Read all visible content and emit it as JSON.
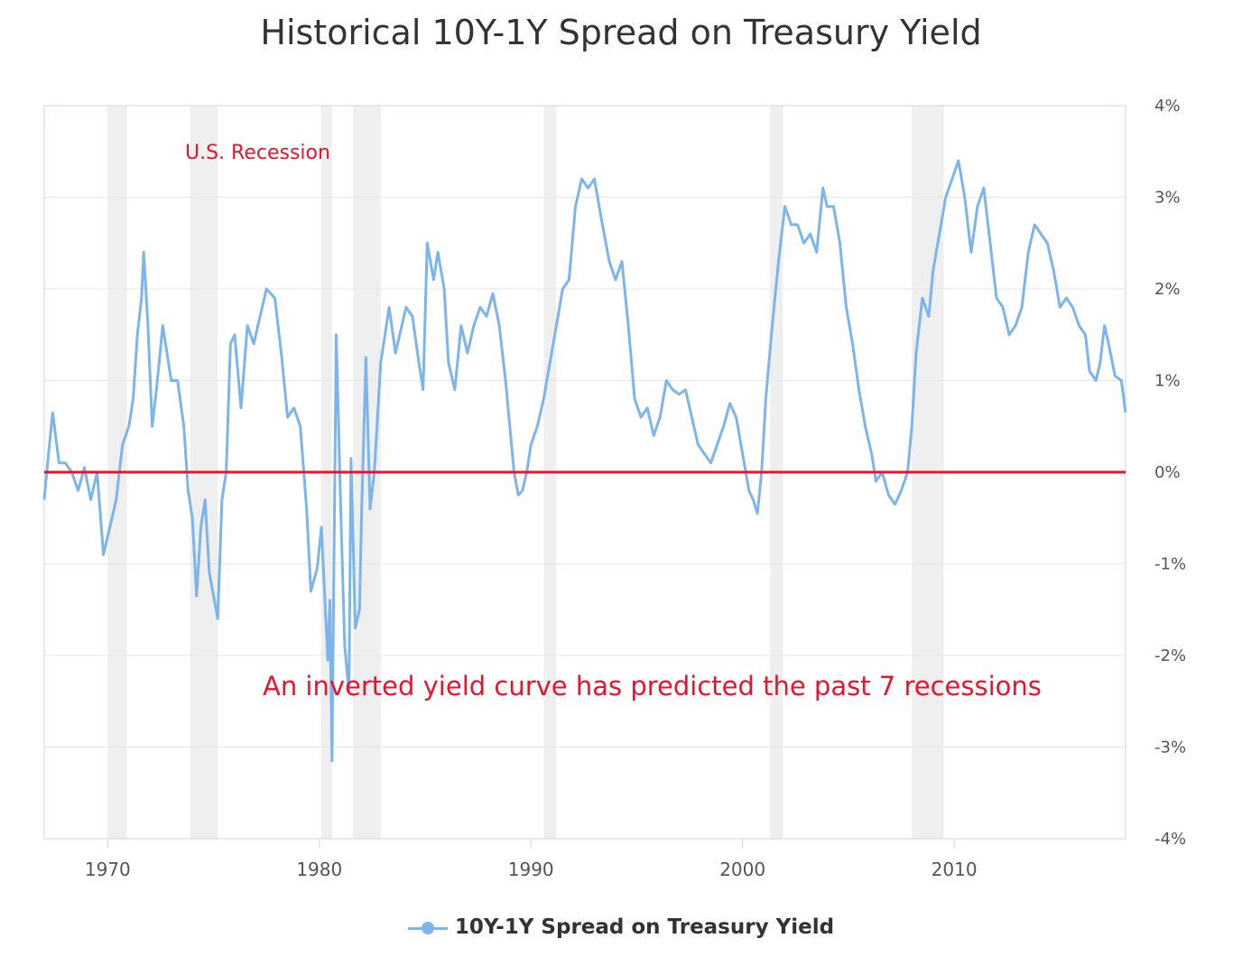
{
  "chart_data": {
    "type": "line",
    "title": "Historical 10Y-1Y Spread on Treasury Yield",
    "x_ticks": [
      "1970",
      "1980",
      "1990",
      "2000",
      "2010"
    ],
    "y_ticks": [
      "4%",
      "3%",
      "2%",
      "1%",
      "0%",
      "-1%",
      "-2%",
      "-3%",
      "-4%"
    ],
    "xlim": [
      1967.0,
      2018.1
    ],
    "ylim": [
      -4,
      4
    ],
    "grid": true,
    "legend_position": "bottom-center",
    "series": [
      {
        "name": "10Y-1Y Spread on Treasury Yield",
        "color": "#7cb5ec",
        "points": [
          [
            1967.0,
            -0.3
          ],
          [
            1967.2,
            0.2
          ],
          [
            1967.4,
            0.65
          ],
          [
            1967.7,
            0.1
          ],
          [
            1968.0,
            0.1
          ],
          [
            1968.3,
            0.0
          ],
          [
            1968.6,
            -0.2
          ],
          [
            1968.9,
            0.05
          ],
          [
            1969.2,
            -0.3
          ],
          [
            1969.5,
            0.0
          ],
          [
            1969.8,
            -0.9
          ],
          [
            1970.1,
            -0.6
          ],
          [
            1970.4,
            -0.3
          ],
          [
            1970.7,
            0.3
          ],
          [
            1971.0,
            0.5
          ],
          [
            1971.2,
            0.8
          ],
          [
            1971.4,
            1.5
          ],
          [
            1971.6,
            1.9
          ],
          [
            1971.7,
            2.4
          ],
          [
            1971.9,
            1.6
          ],
          [
            1972.1,
            0.5
          ],
          [
            1972.3,
            0.9
          ],
          [
            1972.6,
            1.6
          ],
          [
            1972.8,
            1.3
          ],
          [
            1973.0,
            1.0
          ],
          [
            1973.3,
            1.0
          ],
          [
            1973.6,
            0.5
          ],
          [
            1973.8,
            -0.2
          ],
          [
            1974.0,
            -0.5
          ],
          [
            1974.2,
            -1.35
          ],
          [
            1974.4,
            -0.6
          ],
          [
            1974.6,
            -0.3
          ],
          [
            1974.8,
            -1.1
          ],
          [
            1975.0,
            -1.35
          ],
          [
            1975.2,
            -1.6
          ],
          [
            1975.4,
            -0.3
          ],
          [
            1975.6,
            0.0
          ],
          [
            1975.8,
            1.4
          ],
          [
            1976.0,
            1.5
          ],
          [
            1976.3,
            0.7
          ],
          [
            1976.6,
            1.6
          ],
          [
            1976.9,
            1.4
          ],
          [
            1977.2,
            1.7
          ],
          [
            1977.5,
            2.0
          ],
          [
            1977.9,
            1.9
          ],
          [
            1978.2,
            1.3
          ],
          [
            1978.5,
            0.6
          ],
          [
            1978.8,
            0.7
          ],
          [
            1979.1,
            0.5
          ],
          [
            1979.4,
            -0.4
          ],
          [
            1979.6,
            -1.3
          ],
          [
            1979.9,
            -1.05
          ],
          [
            1980.1,
            -0.6
          ],
          [
            1980.2,
            -1.1
          ],
          [
            1980.4,
            -2.05
          ],
          [
            1980.5,
            -1.4
          ],
          [
            1980.6,
            -3.15
          ],
          [
            1980.8,
            1.5
          ],
          [
            1981.0,
            -0.3
          ],
          [
            1981.2,
            -1.9
          ],
          [
            1981.4,
            -2.4
          ],
          [
            1981.5,
            0.15
          ],
          [
            1981.7,
            -1.7
          ],
          [
            1981.9,
            -1.5
          ],
          [
            1982.0,
            -0.4
          ],
          [
            1982.2,
            1.25
          ],
          [
            1982.4,
            -0.4
          ],
          [
            1982.6,
            0.0
          ],
          [
            1982.9,
            1.2
          ],
          [
            1983.1,
            1.5
          ],
          [
            1983.3,
            1.8
          ],
          [
            1983.6,
            1.3
          ],
          [
            1983.9,
            1.6
          ],
          [
            1984.1,
            1.8
          ],
          [
            1984.4,
            1.7
          ],
          [
            1984.7,
            1.2
          ],
          [
            1984.9,
            0.9
          ],
          [
            1985.1,
            2.5
          ],
          [
            1985.4,
            2.1
          ],
          [
            1985.6,
            2.4
          ],
          [
            1985.9,
            2.0
          ],
          [
            1986.1,
            1.2
          ],
          [
            1986.4,
            0.9
          ],
          [
            1986.7,
            1.6
          ],
          [
            1987.0,
            1.3
          ],
          [
            1987.3,
            1.6
          ],
          [
            1987.6,
            1.8
          ],
          [
            1987.9,
            1.7
          ],
          [
            1988.2,
            1.95
          ],
          [
            1988.5,
            1.6
          ],
          [
            1988.8,
            1.0
          ],
          [
            1989.0,
            0.5
          ],
          [
            1989.2,
            0.0
          ],
          [
            1989.4,
            -0.25
          ],
          [
            1989.6,
            -0.2
          ],
          [
            1989.8,
            0.0
          ],
          [
            1990.0,
            0.3
          ],
          [
            1990.3,
            0.5
          ],
          [
            1990.6,
            0.8
          ],
          [
            1990.9,
            1.2
          ],
          [
            1991.2,
            1.6
          ],
          [
            1991.5,
            2.0
          ],
          [
            1991.8,
            2.1
          ],
          [
            1992.1,
            2.9
          ],
          [
            1992.4,
            3.2
          ],
          [
            1992.7,
            3.1
          ],
          [
            1993.0,
            3.2
          ],
          [
            1993.3,
            2.8
          ],
          [
            1993.7,
            2.3
          ],
          [
            1994.0,
            2.1
          ],
          [
            1994.3,
            2.3
          ],
          [
            1994.6,
            1.6
          ],
          [
            1994.9,
            0.8
          ],
          [
            1995.2,
            0.6
          ],
          [
            1995.5,
            0.7
          ],
          [
            1995.8,
            0.4
          ],
          [
            1996.1,
            0.6
          ],
          [
            1996.4,
            1.0
          ],
          [
            1996.7,
            0.9
          ],
          [
            1997.0,
            0.85
          ],
          [
            1997.3,
            0.9
          ],
          [
            1997.6,
            0.6
          ],
          [
            1997.9,
            0.3
          ],
          [
            1998.2,
            0.2
          ],
          [
            1998.5,
            0.1
          ],
          [
            1998.8,
            0.3
          ],
          [
            1999.1,
            0.5
          ],
          [
            1999.4,
            0.75
          ],
          [
            1999.7,
            0.6
          ],
          [
            2000.0,
            0.2
          ],
          [
            2000.3,
            -0.2
          ],
          [
            2000.5,
            -0.3
          ],
          [
            2000.7,
            -0.45
          ],
          [
            2000.9,
            0.0
          ],
          [
            2001.1,
            0.8
          ],
          [
            2001.4,
            1.6
          ],
          [
            2001.7,
            2.3
          ],
          [
            2002.0,
            2.9
          ],
          [
            2002.3,
            2.7
          ],
          [
            2002.6,
            2.7
          ],
          [
            2002.9,
            2.5
          ],
          [
            2003.2,
            2.6
          ],
          [
            2003.5,
            2.4
          ],
          [
            2003.8,
            3.1
          ],
          [
            2004.0,
            2.9
          ],
          [
            2004.3,
            2.9
          ],
          [
            2004.6,
            2.5
          ],
          [
            2004.9,
            1.8
          ],
          [
            2005.2,
            1.4
          ],
          [
            2005.5,
            0.9
          ],
          [
            2005.8,
            0.5
          ],
          [
            2006.1,
            0.2
          ],
          [
            2006.3,
            -0.1
          ],
          [
            2006.6,
            0.0
          ],
          [
            2006.9,
            -0.25
          ],
          [
            2007.2,
            -0.35
          ],
          [
            2007.5,
            -0.2
          ],
          [
            2007.8,
            0.0
          ],
          [
            2008.0,
            0.5
          ],
          [
            2008.2,
            1.3
          ],
          [
            2008.5,
            1.9
          ],
          [
            2008.8,
            1.7
          ],
          [
            2009.0,
            2.2
          ],
          [
            2009.3,
            2.6
          ],
          [
            2009.6,
            3.0
          ],
          [
            2009.9,
            3.2
          ],
          [
            2010.2,
            3.4
          ],
          [
            2010.5,
            3.0
          ],
          [
            2010.8,
            2.4
          ],
          [
            2011.1,
            2.9
          ],
          [
            2011.4,
            3.1
          ],
          [
            2011.7,
            2.5
          ],
          [
            2012.0,
            1.9
          ],
          [
            2012.3,
            1.8
          ],
          [
            2012.6,
            1.5
          ],
          [
            2012.9,
            1.6
          ],
          [
            2013.2,
            1.8
          ],
          [
            2013.5,
            2.4
          ],
          [
            2013.8,
            2.7
          ],
          [
            2014.1,
            2.6
          ],
          [
            2014.4,
            2.5
          ],
          [
            2014.7,
            2.2
          ],
          [
            2015.0,
            1.8
          ],
          [
            2015.3,
            1.9
          ],
          [
            2015.6,
            1.8
          ],
          [
            2015.9,
            1.6
          ],
          [
            2016.2,
            1.5
          ],
          [
            2016.4,
            1.1
          ],
          [
            2016.7,
            1.0
          ],
          [
            2016.9,
            1.2
          ],
          [
            2017.1,
            1.6
          ],
          [
            2017.3,
            1.4
          ],
          [
            2017.6,
            1.05
          ],
          [
            2017.9,
            1.0
          ],
          [
            2018.1,
            0.65
          ]
        ]
      }
    ],
    "recession_bands": [
      [
        1970.0,
        1970.9
      ],
      [
        1973.9,
        1975.2
      ],
      [
        1980.1,
        1980.6
      ],
      [
        1981.6,
        1982.9
      ],
      [
        1990.6,
        1991.2
      ],
      [
        2001.3,
        2001.9
      ],
      [
        2008.0,
        2009.5
      ]
    ],
    "annotations": {
      "recession_label": "U.S. Recession",
      "note": "An inverted yield curve has predicted the past 7 recessions"
    },
    "colors": {
      "line": "#7cb5ec",
      "zero_line": "#e8132d",
      "annotation": "#e8132d",
      "recession_band": "#efefef",
      "grid": "#e6e6e6"
    }
  }
}
